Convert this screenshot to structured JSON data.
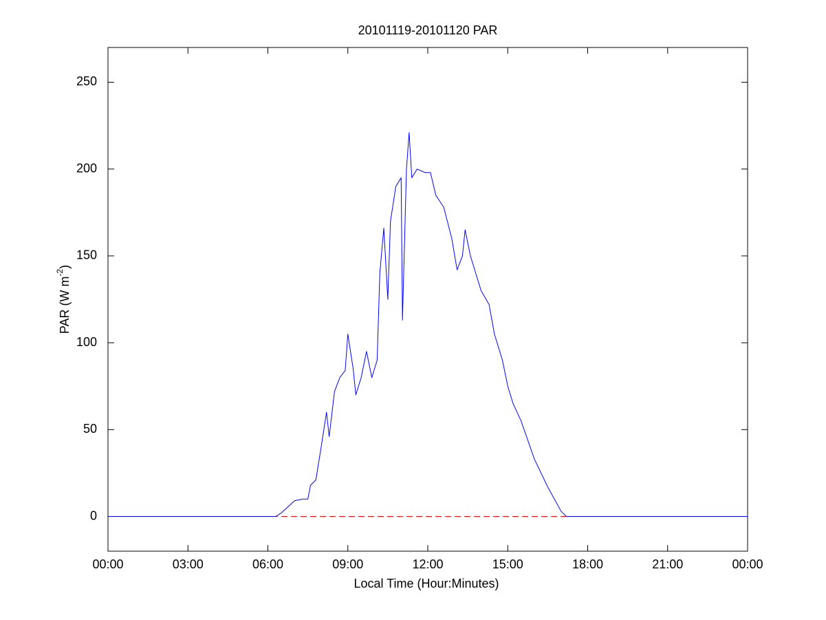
{
  "chart_data": {
    "type": "line",
    "title": "20101119-20101120 PAR",
    "x_label": "Local Time (Hour:Minutes)",
    "y_label": [
      "PAR (W m",
      "-2",
      ")"
    ],
    "x": [
      0,
      6.3,
      6.5,
      7.0,
      7.3,
      7.5,
      7.6,
      7.8,
      8.0,
      8.2,
      8.3,
      8.5,
      8.7,
      8.9,
      9.0,
      9.2,
      9.3,
      9.5,
      9.7,
      9.9,
      10.1,
      10.2,
      10.35,
      10.5,
      10.6,
      10.8,
      11.0,
      11.05,
      11.2,
      11.3,
      11.4,
      11.6,
      11.9,
      12.1,
      12.3,
      12.6,
      12.9,
      13.1,
      13.3,
      13.4,
      13.6,
      13.8,
      14.0,
      14.3,
      14.5,
      14.8,
      15.0,
      15.2,
      15.5,
      16.0,
      16.5,
      17.0,
      17.2,
      24
    ],
    "values": [
      0,
      0,
      2,
      9,
      10,
      10,
      18,
      21,
      40,
      60,
      46,
      72,
      80,
      84,
      105,
      85,
      70,
      80,
      95,
      80,
      90,
      140,
      166,
      125,
      170,
      190,
      195,
      113,
      200,
      221,
      195,
      200,
      198,
      198,
      185,
      178,
      160,
      142,
      150,
      165,
      150,
      140,
      130,
      122,
      105,
      90,
      75,
      65,
      55,
      33,
      17,
      3,
      0,
      0
    ],
    "color": "#0000ff",
    "hline": {
      "y": 0,
      "color": "#ff0000",
      "style": "dashed"
    },
    "xlim": [
      0,
      24
    ],
    "xticks": [
      {
        "value": 0,
        "label": "00:00"
      },
      {
        "value": 3,
        "label": "03:00"
      },
      {
        "value": 6,
        "label": "06:00"
      },
      {
        "value": 9,
        "label": "09:00"
      },
      {
        "value": 12,
        "label": "12:00"
      },
      {
        "value": 15,
        "label": "15:00"
      },
      {
        "value": 18,
        "label": "18:00"
      },
      {
        "value": 21,
        "label": "21:00"
      },
      {
        "value": 24,
        "label": "00:00"
      }
    ],
    "ylim": [
      -20,
      270
    ],
    "yticks": [
      0,
      50,
      100,
      150,
      200,
      250
    ],
    "grid": false
  }
}
